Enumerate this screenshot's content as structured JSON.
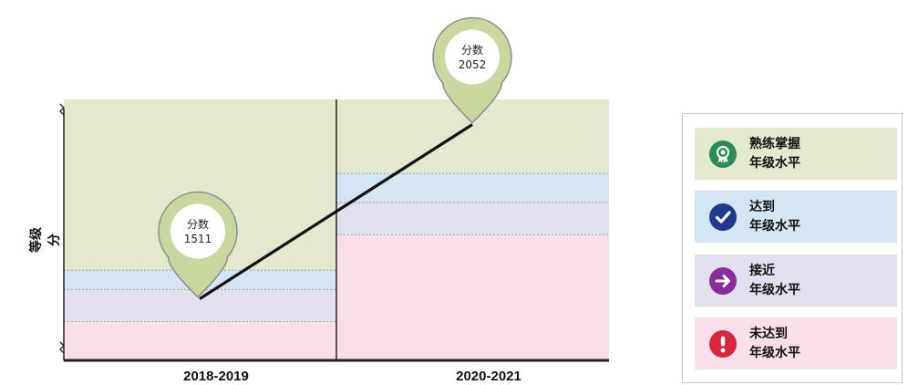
{
  "chart_data": {
    "type": "line",
    "ylabel": "等级分",
    "categories": [
      "2018-2019",
      "2020-2021"
    ],
    "series": [
      {
        "values": [
          1511,
          2052
        ]
      }
    ],
    "data_labels": [
      {
        "label": "分数",
        "value": "1511"
      },
      {
        "label": "分数",
        "value": "2052"
      }
    ],
    "bands": [
      {
        "name": "熟练掌握年级水平",
        "color": "#e3e9cf"
      },
      {
        "name": "达到年级水平",
        "color": "#d4e6f4"
      },
      {
        "name": "接近年级水平",
        "color": "#e2e0ef"
      },
      {
        "name": "未达到年级水平",
        "color": "#f8dfe9"
      }
    ],
    "thresholds": {
      "2018-2019": [
        1600,
        1540,
        1440
      ],
      "2020-2021": [
        1900,
        1810,
        1710
      ]
    },
    "ylim": [
      1320,
      2130
    ]
  },
  "legend": {
    "items": [
      {
        "line1": "熟练掌握",
        "line2": "年级水平",
        "bg": "#e3e9cf",
        "icon": "award-icon",
        "icon_color": "#2e8b57"
      },
      {
        "line1": "达到",
        "line2": "年级水平",
        "bg": "#d4e6f4",
        "icon": "check-icon",
        "icon_color": "#1f3a8a"
      },
      {
        "line1": "接近",
        "line2": "年级水平",
        "bg": "#e2e0ef",
        "icon": "arrow-right-icon",
        "icon_color": "#8a2c9a"
      },
      {
        "line1": "未达到",
        "line2": "年级水平",
        "bg": "#f8dfe9",
        "icon": "exclamation-icon",
        "icon_color": "#d7263d"
      }
    ]
  }
}
